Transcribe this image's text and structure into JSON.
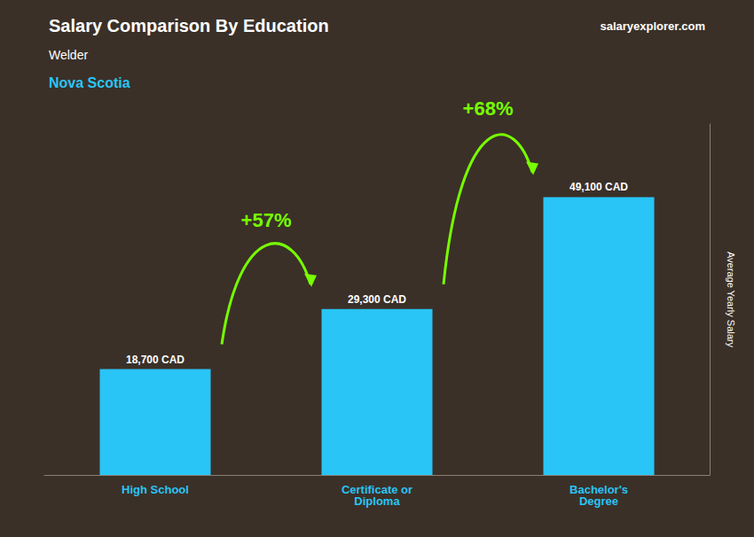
{
  "chart_data": {
    "type": "bar",
    "title": "Salary Comparison By Education",
    "subtitle": [
      "Welder",
      "Nova Scotia"
    ],
    "categories": [
      "High School",
      "Certificate or\nDiploma",
      "Bachelor's\nDegree"
    ],
    "values": [
      18700,
      29300,
      49100
    ],
    "value_labels": [
      "18,700 CAD",
      "29,300 CAD",
      "49,100 CAD"
    ],
    "data_labels": true,
    "color": "#29C5F6",
    "ylabel": "Average Yearly Salary",
    "annotations": [
      "+57%",
      "+68%",
      "salaryexplorer.com"
    ],
    "ylim": [
      0,
      62000
    ],
    "grid": false,
    "tick_labels": "x"
  }
}
